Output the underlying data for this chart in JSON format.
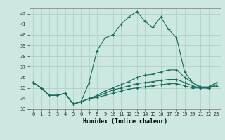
{
  "xlabel": "Humidex (Indice chaleur)",
  "xlim": [
    -0.5,
    23.5
  ],
  "ylim": [
    33,
    42.5
  ],
  "yticks": [
    33,
    34,
    35,
    36,
    37,
    38,
    39,
    40,
    41,
    42
  ],
  "xticks": [
    0,
    1,
    2,
    3,
    4,
    5,
    6,
    7,
    8,
    9,
    10,
    11,
    12,
    13,
    14,
    15,
    16,
    17,
    18,
    19,
    20,
    21,
    22,
    23
  ],
  "bg_color": "#cce8e0",
  "grid_color": "#aaccc4",
  "line_color": "#1a6b60",
  "lines": [
    [
      35.5,
      35.0,
      34.3,
      34.3,
      34.5,
      33.5,
      33.7,
      35.5,
      38.5,
      39.7,
      40.0,
      41.0,
      41.7,
      42.2,
      41.3,
      40.7,
      41.7,
      40.5,
      39.7,
      36.5,
      35.5,
      35.0,
      35.0,
      35.5
    ],
    [
      35.5,
      35.0,
      34.3,
      34.3,
      34.5,
      33.5,
      33.7,
      34.0,
      34.3,
      34.7,
      35.0,
      35.3,
      35.6,
      36.0,
      36.2,
      36.3,
      36.5,
      36.7,
      36.7,
      36.0,
      35.5,
      35.1,
      35.1,
      35.5
    ],
    [
      35.5,
      35.0,
      34.3,
      34.3,
      34.5,
      33.5,
      33.7,
      34.0,
      34.2,
      34.5,
      34.8,
      35.0,
      35.2,
      35.4,
      35.5,
      35.6,
      35.7,
      35.8,
      35.8,
      35.5,
      35.2,
      35.0,
      35.0,
      35.3
    ],
    [
      35.5,
      35.0,
      34.3,
      34.3,
      34.5,
      33.5,
      33.7,
      34.0,
      34.1,
      34.3,
      34.5,
      34.7,
      34.9,
      35.0,
      35.1,
      35.2,
      35.3,
      35.4,
      35.4,
      35.2,
      35.0,
      35.0,
      35.0,
      35.2
    ]
  ]
}
